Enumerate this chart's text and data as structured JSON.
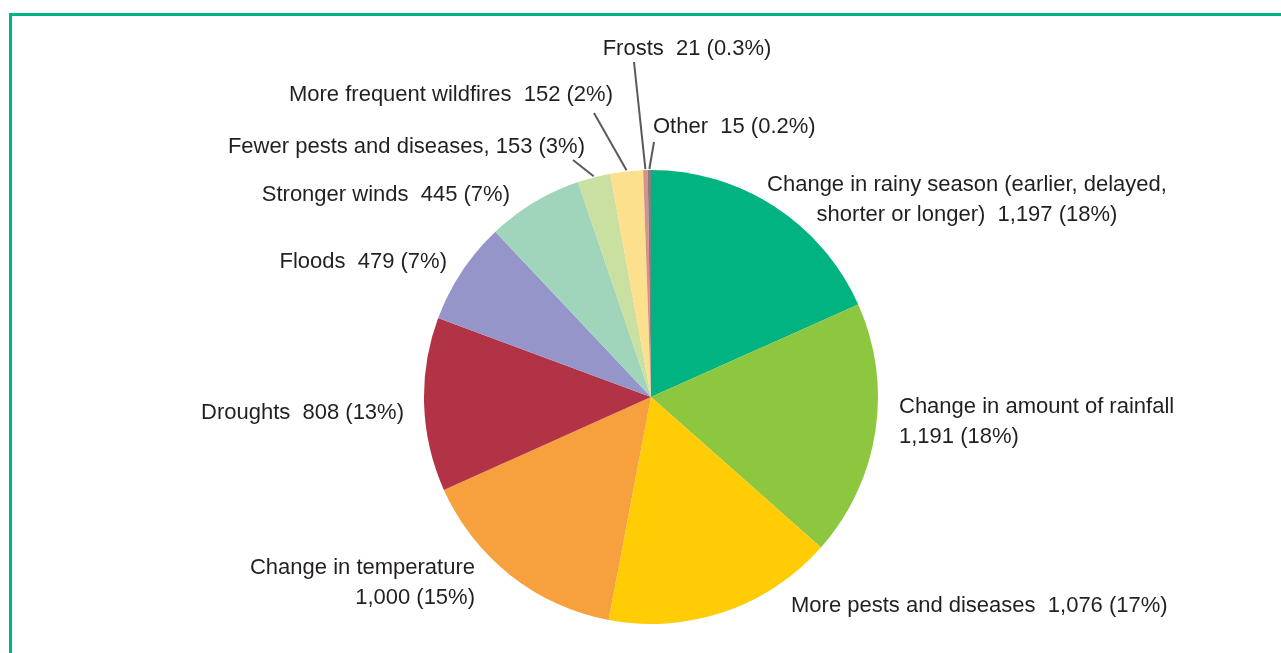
{
  "chart_data": {
    "type": "pie",
    "categories": [
      "Change in rainy season (earlier, delayed, shorter or longer)",
      "Change in amount of rainfall",
      "More pests and diseases",
      "Change in temperature",
      "Droughts",
      "Floods",
      "Stronger winds",
      "Fewer pests and diseases",
      "More frequent wildfires",
      "Frosts",
      "Other"
    ],
    "values": [
      1197,
      1191,
      1076,
      1000,
      808,
      479,
      445,
      153,
      152,
      21,
      15
    ],
    "colors": [
      "#00b381",
      "#8dc63f",
      "#ffcc05",
      "#f7a13e",
      "#b23345",
      "#9595c9",
      "#a0d5bc",
      "#c9e0a0",
      "#fde08e",
      "#d6918a",
      "#808080"
    ],
    "value_labels": [
      "1,197 (18%)",
      "1,191 (18%)",
      "1,076 (17%)",
      "1,000 (15%)",
      "808 (13%)",
      "479 (7%)",
      "445 (7%)",
      "153 (3%)",
      "152 (2%)",
      "21 (0.3%)",
      "15 (0.2%)"
    ]
  }
}
